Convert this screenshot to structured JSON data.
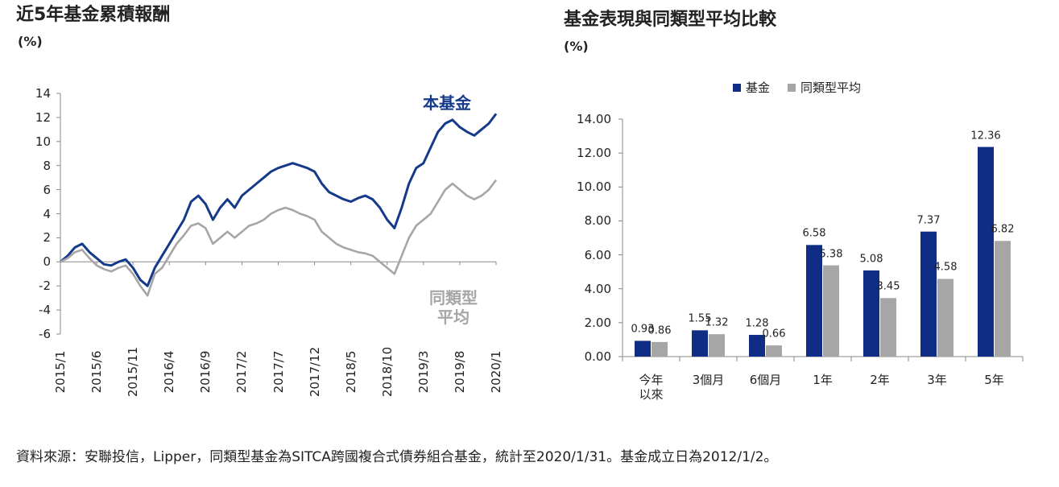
{
  "chart_data": [
    {
      "type": "line",
      "title": "近5年基金累積報酬",
      "subtitle": "(%)",
      "x": [
        "2015/1",
        "2015/2",
        "2015/3",
        "2015/4",
        "2015/5",
        "2015/6",
        "2015/7",
        "2015/8",
        "2015/9",
        "2015/10",
        "2015/11",
        "2015/12",
        "2016/1",
        "2016/2",
        "2016/3",
        "2016/4",
        "2016/5",
        "2016/6",
        "2016/7",
        "2016/8",
        "2016/9",
        "2016/10",
        "2016/11",
        "2016/12",
        "2017/1",
        "2017/2",
        "2017/3",
        "2017/4",
        "2017/5",
        "2017/6",
        "2017/7",
        "2017/8",
        "2017/9",
        "2017/10",
        "2017/11",
        "2017/12",
        "2018/1",
        "2018/2",
        "2018/3",
        "2018/4",
        "2018/5",
        "2018/6",
        "2018/7",
        "2018/8",
        "2018/9",
        "2018/10",
        "2018/11",
        "2018/12",
        "2019/1",
        "2019/2",
        "2019/3",
        "2019/4",
        "2019/5",
        "2019/6",
        "2019/7",
        "2019/8",
        "2019/9",
        "2019/10",
        "2019/11",
        "2019/12",
        "2020/1"
      ],
      "xticks": [
        "2015/1",
        "2015/6",
        "2015/11",
        "2016/4",
        "2016/9",
        "2017/2",
        "2017/7",
        "2017/12",
        "2018/5",
        "2018/10",
        "2019/3",
        "2019/8",
        "2020/1"
      ],
      "ylim": [
        -6,
        14
      ],
      "yticks": [
        14,
        12,
        10,
        8,
        6,
        4,
        2,
        0,
        -2,
        -4,
        -6
      ],
      "grid": false,
      "series": [
        {
          "name": "本基金",
          "color": "#163a8a",
          "values": [
            0,
            0.5,
            1.2,
            1.5,
            0.8,
            0.3,
            -0.2,
            -0.3,
            0.0,
            0.2,
            -0.5,
            -1.5,
            -2.0,
            -0.5,
            0.5,
            1.5,
            2.5,
            3.5,
            5.0,
            5.5,
            4.8,
            3.5,
            4.5,
            5.2,
            4.5,
            5.5,
            6.0,
            6.5,
            7.0,
            7.5,
            7.8,
            8.0,
            8.2,
            8.0,
            7.8,
            7.5,
            6.5,
            5.8,
            5.5,
            5.2,
            5.0,
            5.3,
            5.5,
            5.2,
            4.5,
            3.5,
            2.8,
            4.5,
            6.5,
            7.8,
            8.2,
            9.5,
            10.8,
            11.5,
            11.8,
            11.2,
            10.8,
            10.5,
            11.0,
            11.5,
            12.3
          ]
        },
        {
          "name": "同類型\n平均",
          "color": "#a6a6a6",
          "values": [
            0,
            0.3,
            0.8,
            1.0,
            0.3,
            -0.3,
            -0.6,
            -0.8,
            -0.5,
            -0.3,
            -1.0,
            -2.0,
            -2.8,
            -1.0,
            -0.5,
            0.5,
            1.5,
            2.2,
            3.0,
            3.2,
            2.8,
            1.5,
            2.0,
            2.5,
            2.0,
            2.5,
            3.0,
            3.2,
            3.5,
            4.0,
            4.3,
            4.5,
            4.3,
            4.0,
            3.8,
            3.5,
            2.5,
            2.0,
            1.5,
            1.2,
            1.0,
            0.8,
            0.7,
            0.5,
            0.0,
            -0.5,
            -1.0,
            0.5,
            2.0,
            3.0,
            3.5,
            4.0,
            5.0,
            6.0,
            6.5,
            6.0,
            5.5,
            5.2,
            5.5,
            6.0,
            6.8
          ]
        }
      ]
    },
    {
      "type": "bar",
      "title": "基金表現與同類型平均比較",
      "subtitle": "(%)",
      "categories": [
        "今年\n以來",
        "3個月",
        "6個月",
        "1年",
        "2年",
        "3年",
        "5年"
      ],
      "ylim": [
        0,
        14
      ],
      "yticks": [
        {
          "value": 0,
          "label": "0.00"
        },
        {
          "value": 2,
          "label": "2.00"
        },
        {
          "value": 4,
          "label": "4.00"
        },
        {
          "value": 6,
          "label": "6.00"
        },
        {
          "value": 8,
          "label": "8.00"
        },
        {
          "value": 10,
          "label": "10.00"
        },
        {
          "value": 12,
          "label": "12.00"
        },
        {
          "value": 14,
          "label": "14.00"
        }
      ],
      "legend": "top",
      "series": [
        {
          "name": "基金",
          "color": "#0f2d84",
          "values": [
            0.93,
            1.55,
            1.28,
            6.58,
            5.08,
            7.37,
            12.36
          ]
        },
        {
          "name": "同類型平均",
          "color": "#a6a6a6",
          "values": [
            0.86,
            1.32,
            0.66,
            5.38,
            3.45,
            4.58,
            6.82
          ]
        }
      ]
    }
  ],
  "footer": "資料來源：安聯投信，Lipper，同類型基金為SITCA跨國複合式債券組合基金，統計至2020/1/31。基金成立日為2012/1/2。"
}
